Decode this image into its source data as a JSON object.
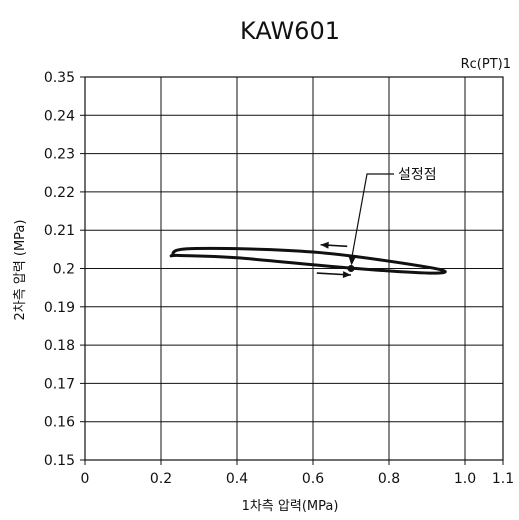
{
  "chart_data": {
    "type": "line",
    "title": "KAW601",
    "port_label": "Rc(PT)1",
    "xlabel": "1차측 압력(MPa)",
    "ylabel": "2차측 압력 (MPa)",
    "xlim": [
      0,
      1.1
    ],
    "ylim": [
      0.15,
      0.35
    ],
    "x_ticks": [
      {
        "value": 0,
        "label": "0"
      },
      {
        "value": 0.2,
        "label": "0.2"
      },
      {
        "value": 0.4,
        "label": "0.4"
      },
      {
        "value": 0.6,
        "label": "0.6"
      },
      {
        "value": 0.8,
        "label": "0.8"
      },
      {
        "value": 1.0,
        "label": "1.0"
      },
      {
        "value": 1.1,
        "label": "1.1"
      }
    ],
    "y_ticks": [
      {
        "value": 0.15,
        "label": "0.15"
      },
      {
        "value": 0.16,
        "label": "0.16"
      },
      {
        "value": 0.17,
        "label": "0.17"
      },
      {
        "value": 0.18,
        "label": "0.18"
      },
      {
        "value": 0.19,
        "label": "0.19"
      },
      {
        "value": 0.2,
        "label": "0.2"
      },
      {
        "value": 0.21,
        "label": "0.21"
      },
      {
        "value": 0.22,
        "label": "0.22"
      },
      {
        "value": 0.23,
        "label": "0.23"
      },
      {
        "value": 0.24,
        "label": "0.24"
      },
      {
        "value": 0.35,
        "label": "0.35"
      }
    ],
    "grid": true,
    "series": [
      {
        "color": "#111111",
        "points": [
          {
            "x": 0.25,
            "y": 0.2034
          },
          {
            "x": 0.4,
            "y": 0.2028
          },
          {
            "x": 0.7,
            "y": 0.2001
          },
          {
            "x": 0.92,
            "y": 0.1988
          },
          {
            "x": 0.91,
            "y": 0.2002
          },
          {
            "x": 0.6,
            "y": 0.2043
          },
          {
            "x": 0.28,
            "y": 0.2052
          },
          {
            "x": 0.23,
            "y": 0.2034
          }
        ]
      }
    ],
    "set_point": {
      "x": 0.7,
      "y": 0.2,
      "label": "설정점"
    },
    "direction_arrows": [
      {
        "from": [
          0.69,
          0.2058
        ],
        "to": [
          0.62,
          0.2062
        ],
        "meaning": "decreasing"
      },
      {
        "from": [
          0.61,
          0.1988
        ],
        "to": [
          0.7,
          0.1983
        ],
        "meaning": "increasing"
      }
    ]
  }
}
